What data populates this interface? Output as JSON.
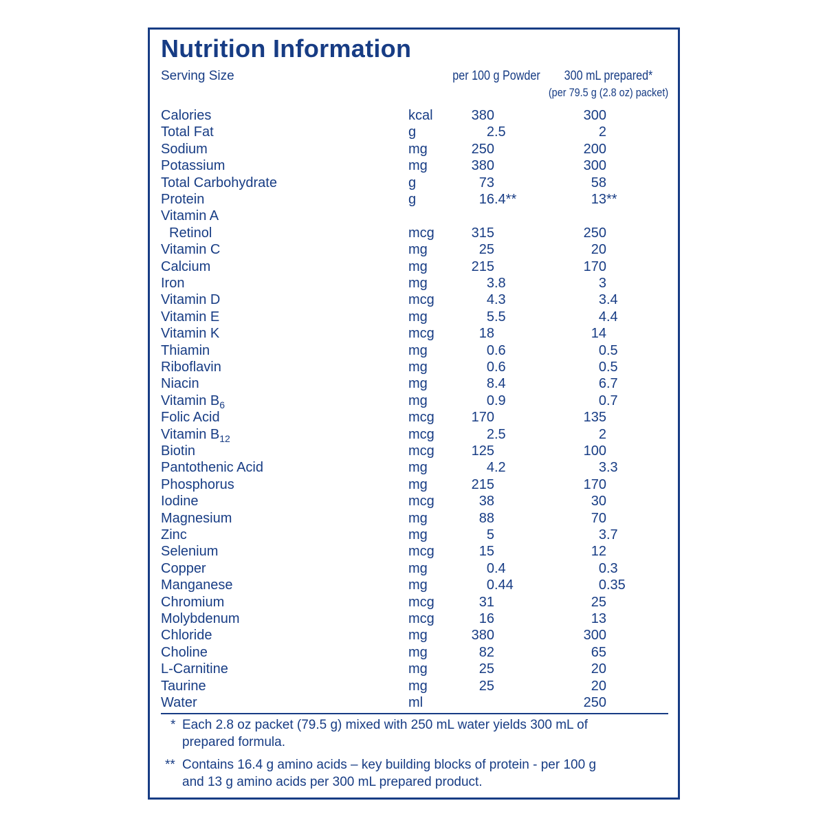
{
  "header": {
    "title": "Nutrition Information",
    "serving_label": "Serving Size",
    "col1": "per 100 g Powder",
    "col2": "300 mL prepared*",
    "col2_sub": "(per 79.5 g (2.8 oz) packet)"
  },
  "table": {
    "rows": [
      {
        "nutrient": "Calories",
        "unit": "kcal",
        "per_100g": "380",
        "prepared": "300"
      },
      {
        "nutrient": "Total Fat",
        "unit": "g",
        "per_100g": "2.5",
        "prepared": "2"
      },
      {
        "nutrient": "Sodium",
        "unit": "mg",
        "per_100g": "250",
        "prepared": "200"
      },
      {
        "nutrient": "Potassium",
        "unit": "mg",
        "per_100g": "380",
        "prepared": "300"
      },
      {
        "nutrient": "Total Carbohydrate",
        "unit": "g",
        "per_100g": "73",
        "prepared": "58"
      },
      {
        "nutrient": "Protein",
        "unit": "g",
        "per_100g": "16.4**",
        "prepared": "13**"
      },
      {
        "nutrient": "Vitamin A"
      },
      {
        "nutrient": "Retinol",
        "indent": true,
        "unit": "mcg",
        "per_100g": "315",
        "prepared": "250"
      },
      {
        "nutrient": "Vitamin C",
        "unit": "mg",
        "per_100g": "25",
        "prepared": "20"
      },
      {
        "nutrient": "Calcium",
        "unit": "mg",
        "per_100g": "215",
        "prepared": "170"
      },
      {
        "nutrient": "Iron",
        "unit": "mg",
        "per_100g": "3.8",
        "prepared": "3"
      },
      {
        "nutrient": "Vitamin D",
        "unit": "mcg",
        "per_100g": "4.3",
        "prepared": "3.4"
      },
      {
        "nutrient": "Vitamin E",
        "unit": "mg",
        "per_100g": "5.5",
        "prepared": "4.4"
      },
      {
        "nutrient": "Vitamin K",
        "unit": "mcg",
        "per_100g": "18",
        "prepared": "14"
      },
      {
        "nutrient": "Thiamin",
        "unit": "mg",
        "per_100g": "0.6",
        "prepared": "0.5"
      },
      {
        "nutrient": "Riboflavin",
        "unit": "mg",
        "per_100g": "0.6",
        "prepared": "0.5"
      },
      {
        "nutrient": "Niacin",
        "unit": "mg",
        "per_100g": "8.4",
        "prepared": "6.7"
      },
      {
        "nutrient": "Vitamin B",
        "sub": "6",
        "unit": "mg",
        "per_100g": "0.9",
        "prepared": "0.7"
      },
      {
        "nutrient": "Folic Acid",
        "unit": "mcg",
        "per_100g": "170",
        "prepared": "135"
      },
      {
        "nutrient": "Vitamin B",
        "sub": "12",
        "unit": "mcg",
        "per_100g": "2.5",
        "prepared": "2"
      },
      {
        "nutrient": "Biotin",
        "unit": "mcg",
        "per_100g": "125",
        "prepared": "100"
      },
      {
        "nutrient": "Pantothenic Acid",
        "unit": "mg",
        "per_100g": "4.2",
        "prepared": "3.3"
      },
      {
        "nutrient": "Phosphorus",
        "unit": "mg",
        "per_100g": "215",
        "prepared": "170"
      },
      {
        "nutrient": "Iodine",
        "unit": "mcg",
        "per_100g": "38",
        "prepared": "30"
      },
      {
        "nutrient": "Magnesium",
        "unit": "mg",
        "per_100g": "88",
        "prepared": "70"
      },
      {
        "nutrient": "Zinc",
        "unit": "mg",
        "per_100g": "5",
        "prepared": "3.7"
      },
      {
        "nutrient": "Selenium",
        "unit": "mcg",
        "per_100g": "15",
        "prepared": "12"
      },
      {
        "nutrient": "Copper",
        "unit": "mg",
        "per_100g": "0.4",
        "prepared": "0.3"
      },
      {
        "nutrient": "Manganese",
        "unit": "mg",
        "per_100g": "0.44",
        "prepared": "0.35"
      },
      {
        "nutrient": "Chromium",
        "unit": "mcg",
        "per_100g": "31",
        "prepared": "25"
      },
      {
        "nutrient": "Molybdenum",
        "unit": "mcg",
        "per_100g": "16",
        "prepared": "13"
      },
      {
        "nutrient": "Chloride",
        "unit": "mg",
        "per_100g": "380",
        "prepared": "300"
      },
      {
        "nutrient": "Choline",
        "unit": "mg",
        "per_100g": "82",
        "prepared": "65"
      },
      {
        "nutrient": "L-Carnitine",
        "unit": "mg",
        "per_100g": "25",
        "prepared": "20"
      },
      {
        "nutrient": "Taurine",
        "unit": "mg",
        "per_100g": "25",
        "prepared": "20"
      },
      {
        "nutrient": "Water",
        "unit": "ml",
        "prepared": "250"
      }
    ]
  },
  "footnotes": [
    {
      "mark": "*",
      "lines": [
        "Each 2.8 oz packet (79.5 g) mixed with 250 mL water yields 300 mL of",
        "prepared formula."
      ]
    },
    {
      "mark": "**",
      "lines": [
        "Contains 16.4 g amino acids – key building blocks of protein - per 100 g",
        "and 13 g amino acids per 300 mL prepared product."
      ]
    }
  ]
}
